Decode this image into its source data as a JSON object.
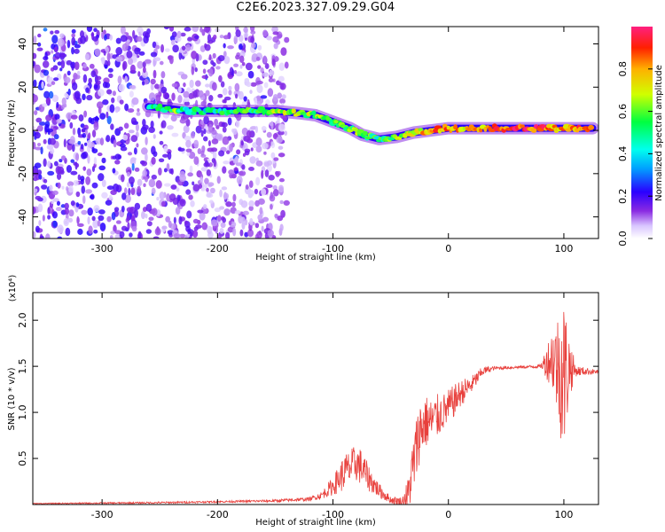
{
  "title": "C2E6.2023.327.09.29.G04",
  "chart_data": [
    {
      "type": "heatmap",
      "xlabel": "Height of straight line (km)",
      "ylabel": "Frequency (Hz)",
      "xlim": [
        -360,
        130
      ],
      "ylim": [
        -50,
        48
      ],
      "x_ticks": [
        -300,
        -200,
        -100,
        0,
        100
      ],
      "x_tick_labels": [
        "-300",
        "-200",
        "-100",
        "0",
        "100"
      ],
      "y_ticks": [
        -40,
        -20,
        0,
        20,
        40
      ],
      "y_tick_labels": [
        "-40",
        "-20",
        "0",
        "20",
        "40"
      ],
      "colorbar": {
        "label": "Normalized spectral amplitude",
        "range": [
          0.0,
          1.0
        ],
        "ticks": [
          0.0,
          0.2,
          0.4,
          0.6,
          0.8
        ],
        "tick_labels": [
          "0.0",
          "0.2",
          "0.4",
          "0.6",
          "0.8"
        ],
        "colormap": "rainbow (white-violet-blue-cyan-green-yellow-red-pink)"
      },
      "noise_region_x": [
        -360,
        -140
      ],
      "ridge": [
        {
          "x": -260,
          "y": 11,
          "amp": 0.55
        },
        {
          "x": -240,
          "y": 10,
          "amp": 0.6
        },
        {
          "x": -225,
          "y": 9,
          "amp": 0.5
        },
        {
          "x": -210,
          "y": 9,
          "amp": 0.45
        },
        {
          "x": -190,
          "y": 9,
          "amp": 0.5
        },
        {
          "x": -170,
          "y": 9,
          "amp": 0.55
        },
        {
          "x": -150,
          "y": 9,
          "amp": 0.6
        },
        {
          "x": -130,
          "y": 8,
          "amp": 0.65
        },
        {
          "x": -115,
          "y": 7,
          "amp": 0.6
        },
        {
          "x": -100,
          "y": 4,
          "amp": 0.5
        },
        {
          "x": -85,
          "y": 1,
          "amp": 0.6
        },
        {
          "x": -75,
          "y": -2,
          "amp": 0.55
        },
        {
          "x": -60,
          "y": -4,
          "amp": 0.5
        },
        {
          "x": -45,
          "y": -3,
          "amp": 0.6
        },
        {
          "x": -30,
          "y": -1,
          "amp": 0.65
        },
        {
          "x": -15,
          "y": 0,
          "amp": 0.85
        },
        {
          "x": 0,
          "y": 1,
          "amp": 0.8
        },
        {
          "x": 20,
          "y": 1,
          "amp": 0.75
        },
        {
          "x": 40,
          "y": 1,
          "amp": 0.85
        },
        {
          "x": 60,
          "y": 1,
          "amp": 0.9
        },
        {
          "x": 80,
          "y": 1,
          "amp": 0.9
        },
        {
          "x": 95,
          "y": 1,
          "amp": 0.75
        },
        {
          "x": 110,
          "y": 1,
          "amp": 0.85
        },
        {
          "x": 125,
          "y": 1,
          "amp": 0.9
        }
      ]
    },
    {
      "type": "line",
      "xlabel": "Height of straight line (km)",
      "ylabel": "SNR (10 * v/v)",
      "y_multiplier": "(x10⁴)",
      "xlim": [
        -360,
        130
      ],
      "ylim": [
        0,
        2.3
      ],
      "x_ticks": [
        -300,
        -200,
        -100,
        0,
        100
      ],
      "x_tick_labels": [
        "-300",
        "-200",
        "-100",
        "0",
        "100"
      ],
      "y_ticks": [
        0.5,
        1.0,
        1.5,
        2.0
      ],
      "y_tick_labels": [
        "0.5",
        "1.0",
        "1.5",
        "2.0"
      ],
      "color": "#e8403c",
      "series": [
        {
          "x": [
            -360,
            -250,
            -200,
            -150,
            -120,
            -110,
            -100,
            -90,
            -80,
            -75,
            -70,
            -60,
            -50,
            -40,
            -35,
            -30,
            -25,
            -20,
            -15,
            -10,
            -5,
            0,
            10,
            20,
            30,
            40,
            60,
            80,
            90,
            95,
            100,
            105,
            110,
            130
          ],
          "y": [
            0.01,
            0.02,
            0.03,
            0.04,
            0.06,
            0.1,
            0.2,
            0.35,
            0.45,
            0.4,
            0.3,
            0.15,
            0.05,
            0.03,
            0.1,
            0.45,
            0.8,
            0.9,
            0.9,
            0.95,
            1.0,
            1.05,
            1.2,
            1.3,
            1.45,
            1.48,
            1.49,
            1.5,
            1.6,
            1.5,
            1.4,
            1.5,
            1.45,
            1.44
          ],
          "noise": [
            0.005,
            0.01,
            0.01,
            0.015,
            0.02,
            0.04,
            0.1,
            0.2,
            0.2,
            0.2,
            0.15,
            0.08,
            0.04,
            0.05,
            0.2,
            0.35,
            0.35,
            0.3,
            0.25,
            0.25,
            0.2,
            0.2,
            0.15,
            0.1,
            0.05,
            0.02,
            0.015,
            0.02,
            0.35,
            0.6,
            0.9,
            0.35,
            0.06,
            0.02
          ]
        }
      ]
    }
  ]
}
